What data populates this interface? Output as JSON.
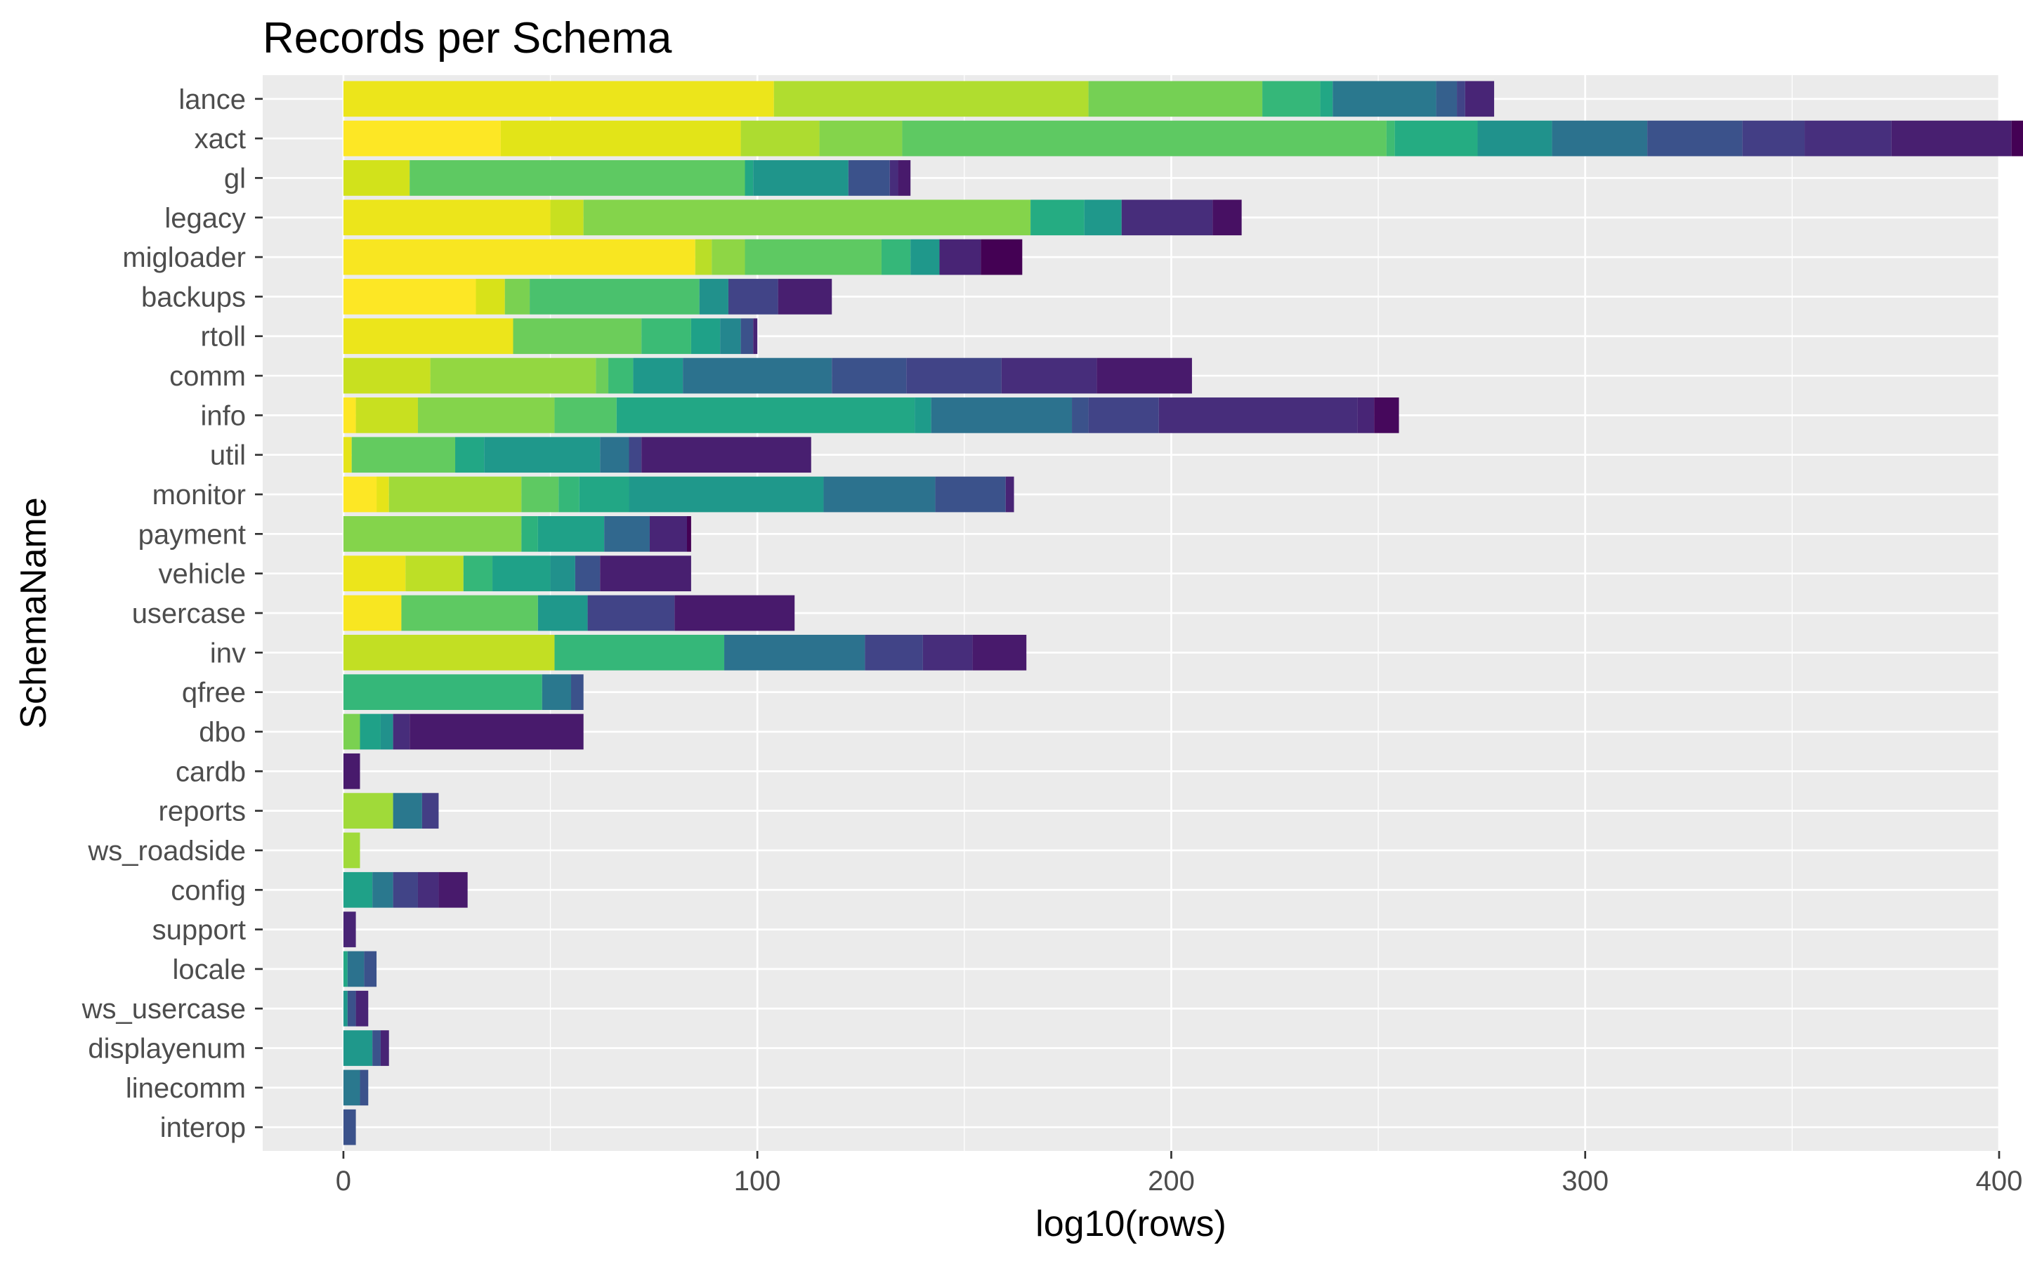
{
  "chart_data": {
    "type": "bar",
    "orientation": "horizontal",
    "stacked": true,
    "title": "Records per Schema",
    "xlabel": "log10(rows)",
    "ylabel": "SchemaName",
    "xlim": [
      -19.5,
      400
    ],
    "x_ticks": [
      0,
      100,
      200,
      300,
      400
    ],
    "grid": true,
    "legend": "none",
    "palette": "viridis",
    "background": "#ebebeb",
    "categories": [
      "lance",
      "xact",
      "gl",
      "legacy",
      "migloader",
      "backups",
      "rtoll",
      "comm",
      "info",
      "util",
      "monitor",
      "payment",
      "vehicle",
      "usercase",
      "inv",
      "qfree",
      "dbo",
      "cardb",
      "reports",
      "ws_roadside",
      "config",
      "support",
      "locale",
      "ws_usercase",
      "displayenum",
      "linecomm",
      "interop"
    ],
    "stacks": [
      {
        "category": "lance",
        "segments": [
          {
            "value": 104,
            "color": "#ece51b"
          },
          {
            "value": 76,
            "color": "#b0dd2f"
          },
          {
            "value": 42,
            "color": "#75d054"
          },
          {
            "value": 14,
            "color": "#35b779"
          },
          {
            "value": 3,
            "color": "#22a785"
          },
          {
            "value": 25,
            "color": "#2a788e"
          },
          {
            "value": 5,
            "color": "#35608d"
          },
          {
            "value": 2,
            "color": "#414487"
          },
          {
            "value": 7,
            "color": "#482576"
          }
        ]
      },
      {
        "category": "xact",
        "segments": [
          {
            "value": 38,
            "color": "#fde725"
          },
          {
            "value": 58,
            "color": "#e2e418"
          },
          {
            "value": 19,
            "color": "#addc30"
          },
          {
            "value": 20,
            "color": "#84d44b"
          },
          {
            "value": 117,
            "color": "#5ec962"
          },
          {
            "value": 2,
            "color": "#3fbc73"
          },
          {
            "value": 20,
            "color": "#25ac82"
          },
          {
            "value": 18,
            "color": "#20928c"
          },
          {
            "value": 23,
            "color": "#2c728e"
          },
          {
            "value": 23,
            "color": "#3b528b"
          },
          {
            "value": 15,
            "color": "#433e85"
          },
          {
            "value": 21,
            "color": "#472f7d"
          },
          {
            "value": 29,
            "color": "#481f70"
          },
          {
            "value": 6,
            "color": "#440154"
          }
        ]
      },
      {
        "category": "gl",
        "segments": [
          {
            "value": 16,
            "color": "#d2e21b"
          },
          {
            "value": 81,
            "color": "#5ec962"
          },
          {
            "value": 2,
            "color": "#22a785"
          },
          {
            "value": 23,
            "color": "#1f958b"
          },
          {
            "value": 10,
            "color": "#3b528b"
          },
          {
            "value": 2,
            "color": "#472d7b"
          },
          {
            "value": 3,
            "color": "#481a6c"
          }
        ]
      },
      {
        "category": "legacy",
        "segments": [
          {
            "value": 50,
            "color": "#ece51b"
          },
          {
            "value": 8,
            "color": "#c8e020"
          },
          {
            "value": 108,
            "color": "#84d44b"
          },
          {
            "value": 13,
            "color": "#25ac82"
          },
          {
            "value": 9,
            "color": "#1f988b"
          },
          {
            "value": 22,
            "color": "#472d7b"
          },
          {
            "value": 7,
            "color": "#471063"
          }
        ]
      },
      {
        "category": "migloader",
        "segments": [
          {
            "value": 85,
            "color": "#f8e621"
          },
          {
            "value": 4,
            "color": "#bade28"
          },
          {
            "value": 8,
            "color": "#8ed645"
          },
          {
            "value": 33,
            "color": "#5ec962"
          },
          {
            "value": 7,
            "color": "#35b779"
          },
          {
            "value": 7,
            "color": "#1f988b"
          },
          {
            "value": 10,
            "color": "#482475"
          },
          {
            "value": 10,
            "color": "#440154"
          }
        ]
      },
      {
        "category": "backups",
        "segments": [
          {
            "value": 32,
            "color": "#fde725"
          },
          {
            "value": 7,
            "color": "#d8e219"
          },
          {
            "value": 6,
            "color": "#7ad151"
          },
          {
            "value": 41,
            "color": "#4ac16d"
          },
          {
            "value": 7,
            "color": "#21918c"
          },
          {
            "value": 12,
            "color": "#414487"
          },
          {
            "value": 13,
            "color": "#481f70"
          }
        ]
      },
      {
        "category": "rtoll",
        "segments": [
          {
            "value": 41,
            "color": "#ece51b"
          },
          {
            "value": 31,
            "color": "#6ccd5a"
          },
          {
            "value": 12,
            "color": "#3bbb75"
          },
          {
            "value": 7,
            "color": "#1fa188"
          },
          {
            "value": 5,
            "color": "#24868e"
          },
          {
            "value": 3,
            "color": "#3b528b"
          },
          {
            "value": 1,
            "color": "#482475"
          }
        ]
      },
      {
        "category": "comm",
        "segments": [
          {
            "value": 21,
            "color": "#c8e020"
          },
          {
            "value": 40,
            "color": "#93d741"
          },
          {
            "value": 3,
            "color": "#6ccd5a"
          },
          {
            "value": 6,
            "color": "#3bbb75"
          },
          {
            "value": 12,
            "color": "#1f988b"
          },
          {
            "value": 36,
            "color": "#2c728e"
          },
          {
            "value": 18,
            "color": "#3b528b"
          },
          {
            "value": 23,
            "color": "#414487"
          },
          {
            "value": 23,
            "color": "#472d7b"
          },
          {
            "value": 23,
            "color": "#481a6c"
          }
        ]
      },
      {
        "category": "info",
        "segments": [
          {
            "value": 3,
            "color": "#fde725"
          },
          {
            "value": 15,
            "color": "#c8e020"
          },
          {
            "value": 33,
            "color": "#84d44b"
          },
          {
            "value": 15,
            "color": "#52c569"
          },
          {
            "value": 72,
            "color": "#22a785"
          },
          {
            "value": 4,
            "color": "#1e9b8a"
          },
          {
            "value": 34,
            "color": "#2c728e"
          },
          {
            "value": 4,
            "color": "#3b528b"
          },
          {
            "value": 17,
            "color": "#414487"
          },
          {
            "value": 48,
            "color": "#472d7b"
          },
          {
            "value": 4,
            "color": "#482576"
          },
          {
            "value": 6,
            "color": "#46085c"
          }
        ]
      },
      {
        "category": "util",
        "segments": [
          {
            "value": 2,
            "color": "#e5e419"
          },
          {
            "value": 25,
            "color": "#63cb5f"
          },
          {
            "value": 7,
            "color": "#22a785"
          },
          {
            "value": 28,
            "color": "#1f988b"
          },
          {
            "value": 7,
            "color": "#2c728e"
          },
          {
            "value": 3,
            "color": "#404688"
          },
          {
            "value": 41,
            "color": "#481f70"
          }
        ]
      },
      {
        "category": "monitor",
        "segments": [
          {
            "value": 8,
            "color": "#fde725"
          },
          {
            "value": 3,
            "color": "#e5e419"
          },
          {
            "value": 32,
            "color": "#a0da39"
          },
          {
            "value": 9,
            "color": "#5ec962"
          },
          {
            "value": 5,
            "color": "#35b779"
          },
          {
            "value": 12,
            "color": "#22a785"
          },
          {
            "value": 47,
            "color": "#1f988b"
          },
          {
            "value": 27,
            "color": "#2c728e"
          },
          {
            "value": 17,
            "color": "#3b528b"
          },
          {
            "value": 2,
            "color": "#482475"
          }
        ]
      },
      {
        "category": "payment",
        "segments": [
          {
            "value": 43,
            "color": "#84d44b"
          },
          {
            "value": 4,
            "color": "#2db27d"
          },
          {
            "value": 16,
            "color": "#1fa188"
          },
          {
            "value": 11,
            "color": "#31688e"
          },
          {
            "value": 9,
            "color": "#482576"
          },
          {
            "value": 1,
            "color": "#440154"
          }
        ]
      },
      {
        "category": "vehicle",
        "segments": [
          {
            "value": 15,
            "color": "#ece51b"
          },
          {
            "value": 14,
            "color": "#bddf26"
          },
          {
            "value": 7,
            "color": "#35b779"
          },
          {
            "value": 14,
            "color": "#1fa188"
          },
          {
            "value": 6,
            "color": "#21918c"
          },
          {
            "value": 6,
            "color": "#3b528b"
          },
          {
            "value": 22,
            "color": "#481f70"
          }
        ]
      },
      {
        "category": "usercase",
        "segments": [
          {
            "value": 14,
            "color": "#f8e621"
          },
          {
            "value": 33,
            "color": "#5ec962"
          },
          {
            "value": 12,
            "color": "#1f988b"
          },
          {
            "value": 21,
            "color": "#414487"
          },
          {
            "value": 29,
            "color": "#481a6c"
          }
        ]
      },
      {
        "category": "inv",
        "segments": [
          {
            "value": 51,
            "color": "#c2df23"
          },
          {
            "value": 41,
            "color": "#35b779"
          },
          {
            "value": 34,
            "color": "#2c728e"
          },
          {
            "value": 14,
            "color": "#414487"
          },
          {
            "value": 12,
            "color": "#472d7b"
          },
          {
            "value": 13,
            "color": "#481a6c"
          }
        ]
      },
      {
        "category": "qfree",
        "segments": [
          {
            "value": 48,
            "color": "#35b779"
          },
          {
            "value": 7,
            "color": "#2a788e"
          },
          {
            "value": 3,
            "color": "#3b528b"
          }
        ]
      },
      {
        "category": "dbo",
        "segments": [
          {
            "value": 4,
            "color": "#7ad151"
          },
          {
            "value": 5,
            "color": "#1fa188"
          },
          {
            "value": 3,
            "color": "#21918c"
          },
          {
            "value": 4,
            "color": "#472d7b"
          },
          {
            "value": 42,
            "color": "#481a6c"
          }
        ]
      },
      {
        "category": "cardb",
        "segments": [
          {
            "value": 4,
            "color": "#481a6c"
          }
        ]
      },
      {
        "category": "reports",
        "segments": [
          {
            "value": 12,
            "color": "#a0da39"
          },
          {
            "value": 7,
            "color": "#2a788e"
          },
          {
            "value": 4,
            "color": "#433e85"
          }
        ]
      },
      {
        "category": "ws_roadside",
        "segments": [
          {
            "value": 4,
            "color": "#a0da39"
          }
        ]
      },
      {
        "category": "config",
        "segments": [
          {
            "value": 7,
            "color": "#1fa188"
          },
          {
            "value": 5,
            "color": "#2a788e"
          },
          {
            "value": 6,
            "color": "#414487"
          },
          {
            "value": 5,
            "color": "#472d7b"
          },
          {
            "value": 7,
            "color": "#481a6c"
          }
        ]
      },
      {
        "category": "support",
        "segments": [
          {
            "value": 3,
            "color": "#482475"
          }
        ]
      },
      {
        "category": "locale",
        "segments": [
          {
            "value": 1,
            "color": "#22a785"
          },
          {
            "value": 4,
            "color": "#2c728e"
          },
          {
            "value": 3,
            "color": "#3b528b"
          }
        ]
      },
      {
        "category": "ws_usercase",
        "segments": [
          {
            "value": 1,
            "color": "#1f988b"
          },
          {
            "value": 2,
            "color": "#3b528b"
          },
          {
            "value": 3,
            "color": "#482475"
          }
        ]
      },
      {
        "category": "displayenum",
        "segments": [
          {
            "value": 7,
            "color": "#1f988b"
          },
          {
            "value": 2,
            "color": "#3b528b"
          },
          {
            "value": 2,
            "color": "#482475"
          }
        ]
      },
      {
        "category": "linecomm",
        "segments": [
          {
            "value": 4,
            "color": "#2a788e"
          },
          {
            "value": 2,
            "color": "#3b528b"
          }
        ]
      },
      {
        "category": "interop",
        "segments": [
          {
            "value": 3,
            "color": "#3b528b"
          }
        ]
      }
    ]
  }
}
